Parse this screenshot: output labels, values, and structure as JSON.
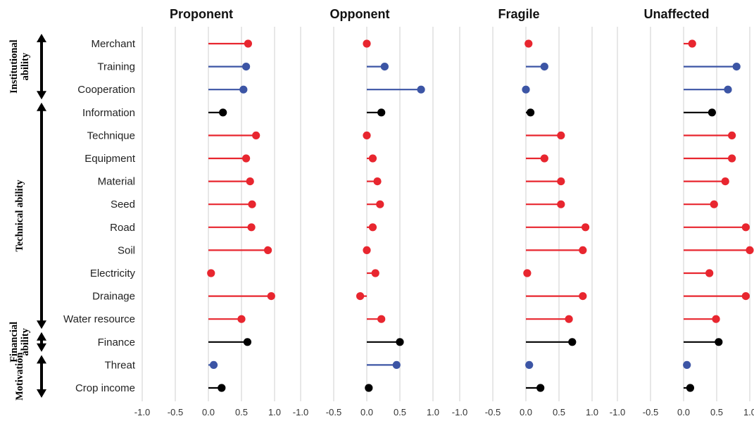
{
  "chart_data": {
    "type": "lollipop",
    "panels": [
      {
        "title": "Proponent",
        "values": [
          0.6,
          0.57,
          0.53,
          0.22,
          0.72,
          0.57,
          0.63,
          0.66,
          0.65,
          0.9,
          0.04,
          0.95,
          0.5,
          0.59,
          0.08,
          0.2
        ]
      },
      {
        "title": "Opponent",
        "values": [
          0.0,
          0.27,
          0.82,
          0.22,
          0.0,
          0.09,
          0.16,
          0.2,
          0.09,
          0.0,
          0.13,
          -0.1,
          0.22,
          0.5,
          0.45,
          0.03
        ]
      },
      {
        "title": "Fragile",
        "values": [
          0.04,
          0.28,
          0.0,
          0.07,
          0.53,
          0.28,
          0.53,
          0.53,
          0.9,
          0.86,
          0.02,
          0.86,
          0.65,
          0.7,
          0.05,
          0.22
        ]
      },
      {
        "title": "Unaffected",
        "values": [
          0.13,
          0.8,
          0.67,
          0.43,
          0.73,
          0.73,
          0.63,
          0.46,
          0.94,
          1.0,
          0.39,
          0.94,
          0.49,
          0.53,
          0.05,
          0.1
        ]
      }
    ],
    "categories": [
      "Merchant",
      "Training",
      "Cooperation",
      "Information",
      "Technique",
      "Equipment",
      "Material",
      "Seed",
      "Road",
      "Soil",
      "Electricity",
      "Drainage",
      "Water resource",
      "Finance",
      "Threat",
      "Crop income"
    ],
    "category_colors": [
      "red",
      "blue",
      "blue",
      "black",
      "red",
      "red",
      "red",
      "red",
      "red",
      "red",
      "red",
      "red",
      "red",
      "black",
      "blue",
      "black"
    ],
    "colors": {
      "red": "#e8262f",
      "blue": "#3c55a5",
      "black": "#000000"
    },
    "xlim": [
      -1.0,
      1.0
    ],
    "xticks": [
      "-1.0",
      "-0.5",
      "0.0",
      "0.5",
      "1.0"
    ],
    "groups": [
      {
        "label_lines": [
          "Institutional",
          "ability"
        ],
        "from": 0,
        "to": 2
      },
      {
        "label_lines": [
          "Technical ability"
        ],
        "from": 3,
        "to": 12
      },
      {
        "label_lines": [
          "Financial",
          "ability"
        ],
        "from": 13,
        "to": 13
      },
      {
        "label_lines": [
          "Motivation"
        ],
        "from": 14,
        "to": 15
      }
    ],
    "grid": "vertical",
    "legend": "none"
  }
}
